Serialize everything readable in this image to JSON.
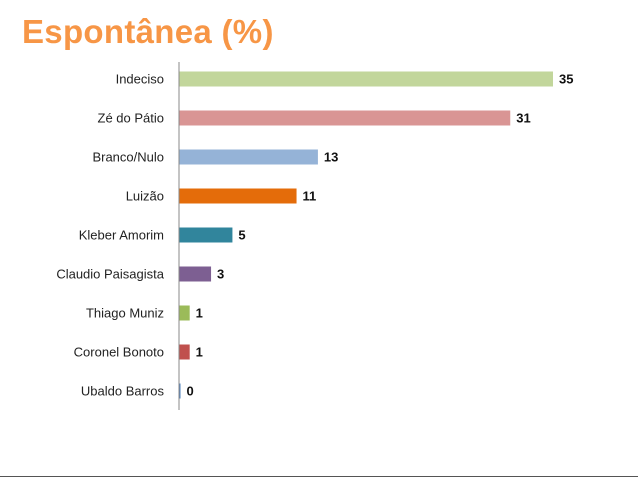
{
  "chart_data": {
    "type": "bar",
    "orientation": "horizontal",
    "title": "Espontânea (%)",
    "categories": [
      "Indeciso",
      "Zé do Pátio",
      "Branco/Nulo",
      "Luizão",
      "Kleber Amorim",
      "Claudio Paisagista",
      "Thiago Muniz",
      "Coronel Bonoto",
      "Ubaldo Barros"
    ],
    "values": [
      35,
      31,
      13,
      11,
      5,
      3,
      1,
      1,
      0
    ],
    "colors": [
      "#c2d69b",
      "#d99594",
      "#95b3d7",
      "#e46c0a",
      "#31859c",
      "#7d5f92",
      "#9bbb59",
      "#c0504d",
      "#4f81bd"
    ],
    "xlim": [
      0,
      35
    ],
    "grid": false,
    "legend": "none"
  },
  "theme": {
    "title_color": "#f79646",
    "axis_color": "#888888"
  }
}
